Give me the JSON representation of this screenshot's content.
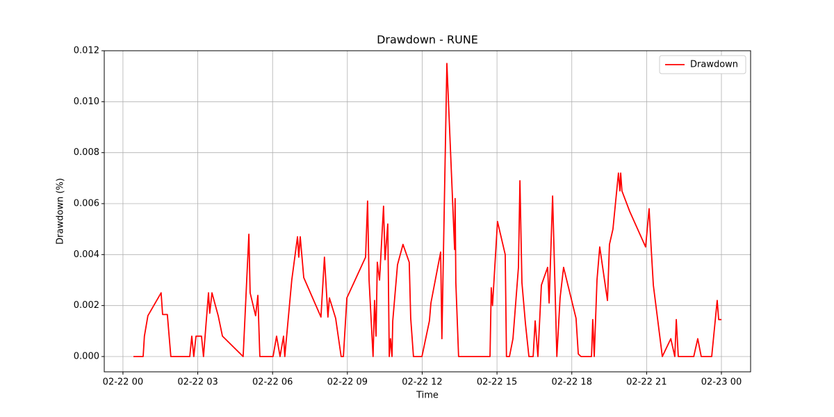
{
  "chart_data": {
    "type": "line",
    "title": "Drawdown - RUNE",
    "xlabel": "Time",
    "ylabel": "Drawdown (%)",
    "x": [
      0.42,
      0.81,
      0.86,
      1.0,
      1.53,
      1.59,
      1.78,
      1.92,
      2.68,
      2.76,
      2.84,
      2.93,
      3.15,
      3.23,
      3.43,
      3.48,
      3.57,
      3.82,
      3.99,
      4.82,
      5.05,
      5.1,
      5.32,
      5.41,
      5.49,
      6.02,
      6.16,
      6.3,
      6.44,
      6.49,
      6.77,
      7.0,
      7.05,
      7.11,
      7.25,
      7.94,
      8.08,
      8.22,
      8.28,
      8.53,
      8.75,
      8.84,
      8.98,
      9.73,
      9.81,
      9.87,
      10.03,
      10.09,
      10.15,
      10.2,
      10.29,
      10.45,
      10.51,
      10.62,
      10.68,
      10.73,
      10.79,
      10.82,
      11.01,
      11.23,
      11.48,
      11.54,
      11.65,
      11.99,
      12.29,
      12.35,
      12.74,
      12.79,
      12.99,
      13.3,
      13.32,
      13.35,
      13.46,
      14.72,
      14.77,
      14.82,
      15.02,
      15.33,
      15.38,
      15.5,
      15.64,
      15.86,
      15.92,
      16.0,
      16.14,
      16.28,
      16.45,
      16.53,
      16.64,
      16.78,
      17.03,
      17.09,
      17.23,
      17.4,
      17.53,
      17.67,
      18.17,
      18.26,
      18.37,
      18.79,
      18.84,
      18.9,
      19.01,
      19.12,
      19.43,
      19.51,
      19.65,
      19.87,
      19.93,
      19.96,
      20.01,
      20.32,
      20.96,
      21.1,
      21.18,
      21.27,
      21.63,
      21.97,
      22.13,
      22.19,
      22.27,
      22.89,
      23.05,
      23.19,
      23.61,
      23.69,
      23.83,
      23.89,
      24.0
    ],
    "series": [
      {
        "name": "Drawdown",
        "color": "#ff0000",
        "values": [
          0,
          0,
          0.0008,
          0.0016,
          0.0025,
          0.00165,
          0.00165,
          0,
          0,
          0.0008,
          0,
          0.0008,
          0.0008,
          0,
          0.0025,
          0.0017,
          0.0025,
          0.0016,
          0.0008,
          0,
          0.0048,
          0.0025,
          0.0016,
          0.0024,
          0,
          0,
          0.0008,
          0,
          0.0008,
          0,
          0.003,
          0.0047,
          0.0039,
          0.0047,
          0.0031,
          0.00155,
          0.0039,
          0.00155,
          0.0023,
          0.0015,
          0,
          0,
          0.0023,
          0.0039,
          0.0061,
          0.003,
          0,
          0.0022,
          0.0008,
          0.0037,
          0.003,
          0.0059,
          0.0038,
          0.0052,
          0,
          0.0007,
          0,
          0.0014,
          0.0036,
          0.0044,
          0.0037,
          0.0015,
          0,
          0,
          0.0014,
          0.0021,
          0.0041,
          0.0007,
          0.0115,
          0.0042,
          0.0062,
          0.0029,
          0,
          0,
          0.0027,
          0.002,
          0.0053,
          0.004,
          0,
          0,
          0.0007,
          0.0035,
          0.0069,
          0.0029,
          0.0013,
          0,
          0,
          0.0014,
          0,
          0.0028,
          0.0035,
          0.0021,
          0.0063,
          0,
          0.0023,
          0.0035,
          0.0015,
          0.0001,
          0,
          0,
          0.00145,
          0,
          0.003,
          0.0043,
          0.0022,
          0.0044,
          0.005,
          0.0072,
          0.0065,
          0.0072,
          0.0065,
          0.0057,
          0.0043,
          0.0058,
          0.0043,
          0.0028,
          0,
          0.0007,
          0,
          0.00145,
          0,
          0,
          0.0007,
          0,
          0,
          0.0008,
          0.0022,
          0.00145,
          0.00145
        ]
      }
    ],
    "xlim": [
      -0.75,
      25.17
    ],
    "xticks": [
      {
        "value": 0,
        "label": "02-22 00"
      },
      {
        "value": 3,
        "label": "02-22 03"
      },
      {
        "value": 6,
        "label": "02-22 06"
      },
      {
        "value": 9,
        "label": "02-22 09"
      },
      {
        "value": 12,
        "label": "02-22 12"
      },
      {
        "value": 15,
        "label": "02-22 15"
      },
      {
        "value": 18,
        "label": "02-22 18"
      },
      {
        "value": 21,
        "label": "02-22 21"
      },
      {
        "value": 24,
        "label": "02-23 00"
      }
    ],
    "ylim": [
      -0.0006,
      0.012
    ],
    "yticks": [
      {
        "value": 0,
        "label": "0.000"
      },
      {
        "value": 0.002,
        "label": "0.002"
      },
      {
        "value": 0.004,
        "label": "0.004"
      },
      {
        "value": 0.006,
        "label": "0.006"
      },
      {
        "value": 0.008,
        "label": "0.008"
      },
      {
        "value": 0.01,
        "label": "0.010"
      },
      {
        "value": 0.012,
        "label": "0.012"
      }
    ],
    "grid": true,
    "legend": "upper right"
  }
}
